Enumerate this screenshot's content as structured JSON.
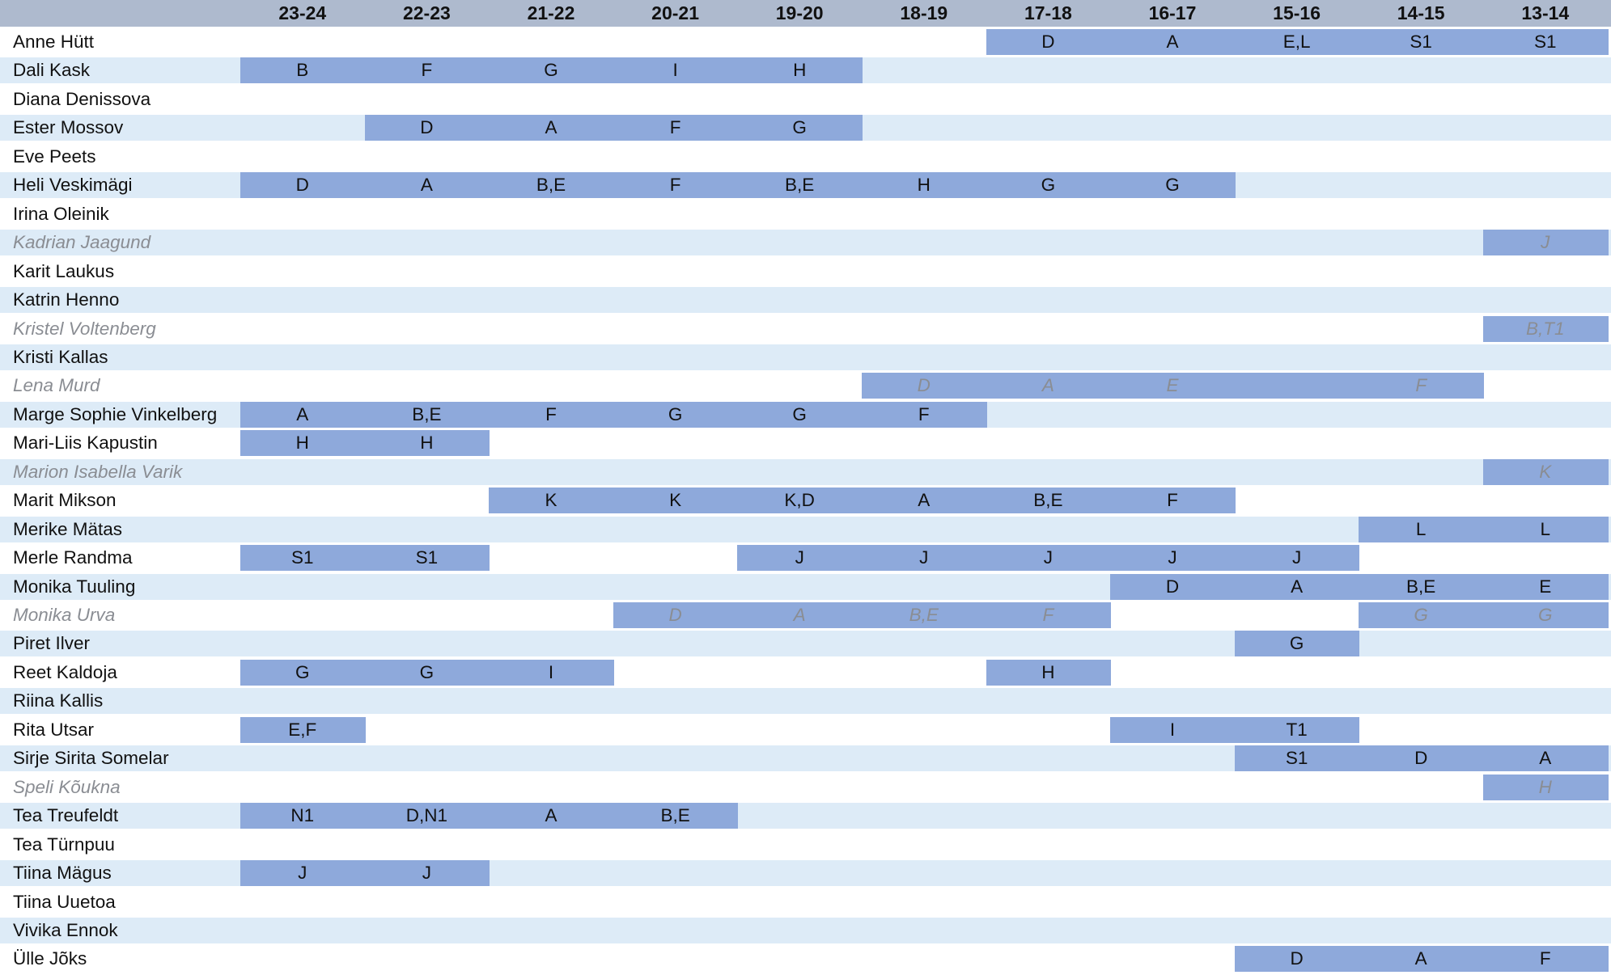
{
  "chart_data": {
    "type": "table",
    "columns": [
      "23-24",
      "22-23",
      "21-22",
      "20-21",
      "19-20",
      "18-19",
      "17-18",
      "16-17",
      "15-16",
      "14-15",
      "13-14"
    ],
    "rows": [
      {
        "name": "Anne Hütt",
        "italic": false,
        "cells": {
          "17-18": "D",
          "16-17": "A",
          "15-16": "E,L",
          "14-15": "S1",
          "13-14": "S1"
        }
      },
      {
        "name": "Dali Kask",
        "italic": false,
        "cells": {
          "23-24": "B",
          "22-23": "F",
          "21-22": "G",
          "20-21": "I",
          "19-20": "H"
        }
      },
      {
        "name": "Diana Denissova",
        "italic": false,
        "cells": {}
      },
      {
        "name": "Ester Mossov",
        "italic": false,
        "cells": {
          "22-23": "D",
          "21-22": "A",
          "20-21": "F",
          "19-20": "G"
        }
      },
      {
        "name": "Eve Peets",
        "italic": false,
        "cells": {}
      },
      {
        "name": "Heli Veskimägi",
        "italic": false,
        "cells": {
          "23-24": "D",
          "22-23": "A",
          "21-22": "B,E",
          "20-21": "F",
          "19-20": "B,E",
          "18-19": "H",
          "17-18": "G",
          "16-17": "G"
        }
      },
      {
        "name": "Irina Oleinik",
        "italic": false,
        "cells": {}
      },
      {
        "name": "Kadrian Jaagund",
        "italic": true,
        "cells": {
          "13-14": "J"
        }
      },
      {
        "name": "Karit Laukus",
        "italic": false,
        "cells": {}
      },
      {
        "name": "Katrin Henno",
        "italic": false,
        "cells": {}
      },
      {
        "name": "Kristel Voltenberg",
        "italic": true,
        "cells": {
          "13-14": "B,T1"
        }
      },
      {
        "name": "Kristi Kallas",
        "italic": false,
        "cells": {}
      },
      {
        "name": "Lena Murd",
        "italic": true,
        "cells": {
          "18-19": "D",
          "17-18": "A",
          "16-17": "E",
          "15-16": "",
          "14-15": "F"
        }
      },
      {
        "name": "Marge Sophie Vinkelberg",
        "italic": false,
        "cells": {
          "23-24": "A",
          "22-23": "B,E",
          "21-22": "F",
          "20-21": "G",
          "19-20": "G",
          "18-19": "F"
        }
      },
      {
        "name": "Mari-Liis Kapustin",
        "italic": false,
        "cells": {
          "23-24": "H",
          "22-23": "H"
        }
      },
      {
        "name": "Marion Isabella Varik",
        "italic": true,
        "cells": {
          "13-14": "K"
        }
      },
      {
        "name": "Marit Mikson",
        "italic": false,
        "cells": {
          "21-22": "K",
          "20-21": "K",
          "19-20": "K,D",
          "18-19": "A",
          "17-18": "B,E",
          "16-17": "F"
        }
      },
      {
        "name": "Merike Mätas",
        "italic": false,
        "cells": {
          "14-15": "L",
          "13-14": "L"
        }
      },
      {
        "name": "Merle Randma",
        "italic": false,
        "cells": {
          "23-24": "S1",
          "22-23": "S1",
          "19-20": "J",
          "18-19": "J",
          "17-18": "J",
          "16-17": "J",
          "15-16": "J"
        }
      },
      {
        "name": "Monika Tuuling",
        "italic": false,
        "cells": {
          "16-17": "D",
          "15-16": "A",
          "14-15": "B,E",
          "13-14": "E"
        }
      },
      {
        "name": "Monika Urva",
        "italic": true,
        "cells": {
          "20-21": "D",
          "19-20": "A",
          "18-19": "B,E",
          "17-18": "F",
          "14-15": "G",
          "13-14": "G"
        }
      },
      {
        "name": "Piret Ilver",
        "italic": false,
        "cells": {
          "15-16": "G"
        }
      },
      {
        "name": "Reet Kaldoja",
        "italic": false,
        "cells": {
          "23-24": "G",
          "22-23": "G",
          "21-22": "I",
          "17-18": "H"
        }
      },
      {
        "name": "Riina Kallis",
        "italic": false,
        "cells": {}
      },
      {
        "name": "Rita Utsar",
        "italic": false,
        "cells": {
          "23-24": "E,F",
          "16-17": "I",
          "15-16": "T1"
        }
      },
      {
        "name": "Sirje Sirita Somelar",
        "italic": false,
        "cells": {
          "15-16": "S1",
          "14-15": "D",
          "13-14": "A"
        }
      },
      {
        "name": "Speli Kõukna",
        "italic": true,
        "cells": {
          "13-14": "H"
        }
      },
      {
        "name": "Tea Treufeldt",
        "italic": false,
        "cells": {
          "23-24": "N1",
          "22-23": "D,N1",
          "21-22": "A",
          "20-21": "B,E"
        }
      },
      {
        "name": "Tea Türnpuu",
        "italic": false,
        "cells": {}
      },
      {
        "name": "Tiina Mägus",
        "italic": false,
        "cells": {
          "23-24": "J",
          "22-23": "J"
        }
      },
      {
        "name": "Tiina Uuetoa",
        "italic": false,
        "cells": {}
      },
      {
        "name": "Vivika Ennok",
        "italic": false,
        "cells": {}
      },
      {
        "name": "Ülle Jõks",
        "italic": false,
        "cells": {
          "15-16": "D",
          "14-15": "A",
          "13-14": "F"
        }
      }
    ]
  },
  "colors": {
    "header_bg": "#aebace",
    "band_light": "#ddebf7",
    "band_white": "#ffffff",
    "filled_cell": "#8ea9db",
    "italic_text": "#8a8d93"
  }
}
